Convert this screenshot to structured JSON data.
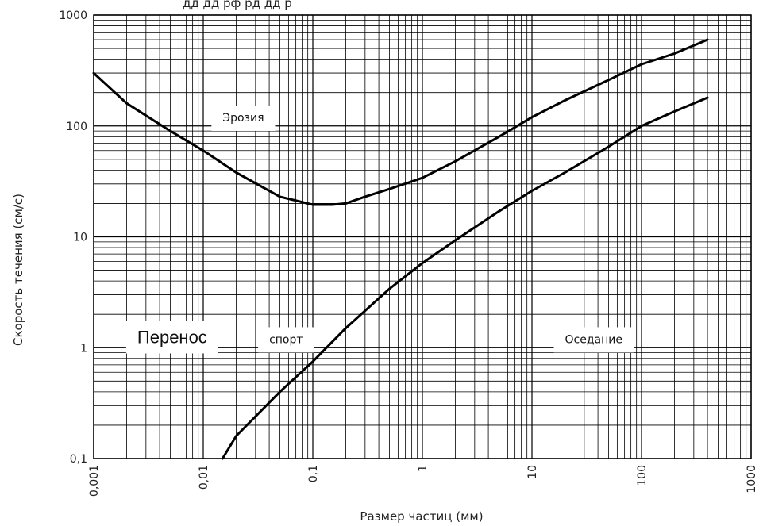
{
  "chart_data": {
    "type": "line",
    "title": "",
    "xlabel": "Размер частиц (мм)",
    "ylabel": "Скорость течения (см/с)",
    "xscale": "log",
    "yscale": "log",
    "xlim": [
      0.001,
      1000
    ],
    "ylim": [
      0.1,
      1000
    ],
    "grid": true,
    "x_tick_labels": [
      "0,001",
      "0,01",
      "0,1",
      "1",
      "10",
      "100",
      "1000"
    ],
    "y_tick_labels": [
      "0,1",
      "1",
      "10",
      "100",
      "1000"
    ],
    "series": [
      {
        "x": [
          0.001,
          0.002,
          0.005,
          0.01,
          0.02,
          0.05,
          0.1,
          0.15,
          0.2,
          0.3,
          0.5,
          1,
          2,
          5,
          10,
          20,
          50,
          100,
          200,
          400
        ],
        "y": [
          300,
          160,
          90,
          60,
          38,
          23,
          19.5,
          19.5,
          20,
          23,
          27,
          34,
          48,
          80,
          120,
          170,
          260,
          360,
          450,
          600
        ],
        "color": "#000000"
      },
      {
        "x": [
          0.015,
          0.02,
          0.05,
          0.1,
          0.2,
          0.5,
          1,
          2,
          5,
          10,
          20,
          50,
          100,
          200,
          400
        ],
        "y": [
          0.1,
          0.16,
          0.4,
          0.75,
          1.5,
          3.4,
          5.8,
          9.3,
          17,
          26,
          38,
          65,
          100,
          135,
          180
        ],
        "color": "#000000"
      }
    ],
    "annotations": [
      {
        "text": "Эрозия",
        "x": 0.015,
        "y": 110
      },
      {
        "text": "Перенос",
        "x": 0.0025,
        "y": 1.1,
        "size": "large"
      },
      {
        "text": "спорт",
        "x": 0.04,
        "y": 1.1
      },
      {
        "text": "Оседание",
        "x": 20,
        "y": 1.1
      }
    ],
    "title_fragment": "дд  дд   рф  рд   дд       р"
  }
}
